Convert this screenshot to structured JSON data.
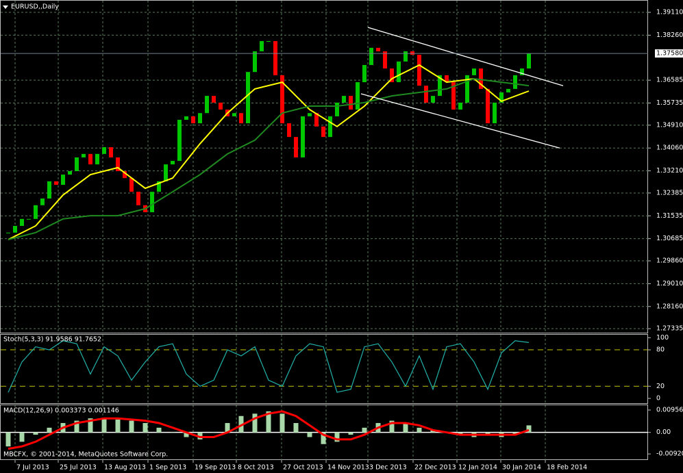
{
  "chart_data": [
    {
      "type": "candlestick",
      "title": "EURUSD,,Daily",
      "up_color": "#00c800",
      "down_color": "#ff0000",
      "closes": [
        1.3091,
        1.3116,
        1.3142,
        1.3142,
        1.3193,
        1.3218,
        1.3282,
        1.3269,
        1.3307,
        1.332,
        1.3371,
        1.3384,
        1.3345,
        1.3384,
        1.3409,
        1.3371,
        1.332,
        1.3294,
        1.3243,
        1.3193,
        1.3167,
        1.3243,
        1.3282,
        1.3345,
        1.3358,
        1.3511,
        1.3524,
        1.3498,
        1.3536,
        1.36,
        1.3575,
        1.3549,
        1.3524,
        1.3536,
        1.3498,
        1.3689,
        1.3766,
        1.3804,
        1.3804,
        1.3677,
        1.3498,
        1.3447,
        1.3371,
        1.3524,
        1.3536,
        1.3486,
        1.3447,
        1.3524,
        1.3575,
        1.36,
        1.3549,
        1.3651,
        1.3715,
        1.3779,
        1.3766,
        1.3702,
        1.3651,
        1.3728,
        1.3766,
        1.3753,
        1.3638,
        1.3575,
        1.36,
        1.3677,
        1.3651,
        1.3549,
        1.3575,
        1.3677,
        1.3702,
        1.3626,
        1.3498,
        1.3575,
        1.3613,
        1.3626,
        1.3677,
        1.3702,
        1.3758
      ],
      "moving_averages": [
        {
          "color": "#ffff00",
          "x": [
            0,
            4,
            8,
            12,
            16,
            20,
            24,
            28,
            32,
            36,
            40,
            44,
            48,
            52,
            56,
            60,
            64,
            68,
            72,
            76
          ],
          "values": [
            1.3065,
            1.3116,
            1.3231,
            1.3307,
            1.3333,
            1.3256,
            1.3294,
            1.3422,
            1.3536,
            1.3626,
            1.3651,
            1.3549,
            1.3486,
            1.3562,
            1.3664,
            1.3715,
            1.3651,
            1.3664,
            1.358,
            1.3618
          ]
        },
        {
          "color": "#1f8a1f",
          "x": [
            0,
            4,
            8,
            12,
            16,
            20,
            24,
            28,
            32,
            36,
            40,
            44,
            48,
            52,
            56,
            60,
            64,
            68,
            72,
            76
          ],
          "values": [
            1.3065,
            1.3091,
            1.3142,
            1.3154,
            1.3154,
            1.318,
            1.3243,
            1.3307,
            1.3384,
            1.3435,
            1.3536,
            1.3562,
            1.3562,
            1.3575,
            1.36,
            1.3613,
            1.3626,
            1.3664,
            1.3651,
            1.3638
          ]
        }
      ],
      "channel": {
        "color": "#ffffff",
        "lines": [
          {
            "x": [
              52.5,
              81
            ],
            "values": [
              1.3855,
              1.3638
            ]
          },
          {
            "x": [
              51.5,
              80.5
            ],
            "values": [
              1.3608,
              1.3406
            ]
          }
        ]
      },
      "last_price": {
        "value": 1.3758,
        "label": "1.37580"
      },
      "xlim": [
        -1.2,
        93.4
      ],
      "xticks": [
        {
          "value": 1.0,
          "label": "7 Jul 2013"
        },
        {
          "value": 7.3,
          "label": "25 Jul 2013"
        },
        {
          "value": 13.8,
          "label": "13 Aug 2013"
        },
        {
          "value": 20.4,
          "label": "1 Sep 2013"
        },
        {
          "value": 27.0,
          "label": "19 Sep 2013"
        },
        {
          "value": 33.3,
          "label": "8 Oct 2013"
        },
        {
          "value": 39.9,
          "label": "27 Oct 2013"
        },
        {
          "value": 46.4,
          "label": "14 Nov 2013"
        },
        {
          "value": 52.5,
          "label": "3 Dec 2013"
        },
        {
          "value": 59.1,
          "label": "22 Dec 2013"
        },
        {
          "value": 65.5,
          "label": "12 Jan 2014"
        },
        {
          "value": 71.9,
          "label": "30 Jan 2014"
        },
        {
          "value": 78.4,
          "label": "18 Feb 2014"
        }
      ],
      "ylim": [
        1.2716,
        1.3957
      ],
      "yticks": [
        {
          "value": 1.3911,
          "label": "1.39110"
        },
        {
          "value": 1.3826,
          "label": "1.38260"
        },
        1.36585,
        1.35735,
        {
          "value": 1.3491,
          "label": "1.34910"
        },
        {
          "value": 1.3406,
          "label": "1.34060"
        },
        {
          "value": 1.3321,
          "label": "1.33210"
        },
        1.32385,
        1.31535,
        1.30685,
        {
          "value": 1.2986,
          "label": "1.29860"
        },
        {
          "value": 1.2901,
          "label": "1.29010"
        },
        {
          "value": 1.2816,
          "label": "1.28160"
        },
        1.27335
      ],
      "grid": true
    },
    {
      "type": "line",
      "title": "Stoch(5,3,3) 91.9586 91.7652",
      "series": [
        {
          "color": "#20b2aa",
          "x": [
            0,
            2,
            4,
            6,
            8,
            10,
            12,
            14,
            16,
            18,
            20,
            22,
            24,
            26,
            28,
            30,
            32,
            34,
            36,
            38,
            40,
            42,
            44,
            46,
            48,
            50,
            52,
            54,
            56,
            58,
            60,
            62,
            64,
            66,
            68,
            70,
            72,
            74,
            76
          ],
          "values": [
            10,
            60,
            85,
            80,
            95,
            90,
            40,
            85,
            70,
            30,
            60,
            85,
            90,
            40,
            20,
            30,
            80,
            70,
            85,
            30,
            20,
            70,
            90,
            85,
            10,
            15,
            85,
            90,
            60,
            20,
            70,
            15,
            85,
            90,
            60,
            15,
            75,
            95,
            92
          ]
        }
      ],
      "levels": [
        80,
        20
      ],
      "level_color": "#c8c800",
      "ylim": [
        -9,
        106
      ],
      "yticks": [
        100,
        80,
        20,
        0
      ],
      "grid": false
    },
    {
      "type": "macd",
      "title": "MACD(12,26,9) 0.003373 0.001146",
      "footer": "MBCFX, © 2001-2014, MetaQuotes Software Corp.",
      "histogram": {
        "color": "#a8d8a8",
        "x": [
          0,
          2,
          4,
          6,
          8,
          10,
          12,
          14,
          16,
          18,
          20,
          22,
          24,
          26,
          28,
          30,
          32,
          34,
          36,
          38,
          40,
          42,
          44,
          46,
          48,
          50,
          52,
          54,
          56,
          58,
          60,
          62,
          64,
          66,
          68,
          70,
          72,
          74,
          76
        ],
        "values": [
          -0.006,
          -0.004,
          -0.001,
          0.002,
          0.004,
          0.005,
          0.006,
          0.006,
          0.0055,
          0.005,
          0.004,
          0.002,
          0,
          -0.002,
          -0.003,
          0,
          0.004,
          0.007,
          0.008,
          0.009,
          0.008,
          0.004,
          -0.002,
          -0.005,
          -0.004,
          -0.001,
          0.002,
          0.004,
          0.005,
          0.004,
          0.002,
          0.001,
          0,
          -0.001,
          -0.002,
          -0.001,
          -0.002,
          -0.001,
          0.003
        ]
      },
      "signal": {
        "color": "#ff0000",
        "x": [
          0,
          2,
          4,
          6,
          8,
          10,
          12,
          14,
          16,
          18,
          20,
          22,
          24,
          26,
          28,
          30,
          32,
          34,
          36,
          38,
          40,
          42,
          44,
          46,
          48,
          50,
          52,
          54,
          56,
          58,
          60,
          62,
          64,
          66,
          68,
          70,
          72,
          74,
          76
        ],
        "values": [
          -0.007,
          -0.006,
          -0.004,
          -0.001,
          0.002,
          0.004,
          0.005,
          0.006,
          0.006,
          0.0055,
          0.005,
          0.004,
          0.002,
          0,
          -0.002,
          -0.002,
          0,
          0.003,
          0.006,
          0.008,
          0.009,
          0.007,
          0.003,
          -0.001,
          -0.003,
          -0.003,
          -0.001,
          0.002,
          0.004,
          0.004,
          0.003,
          0.001,
          0,
          -0.001,
          -0.001,
          -0.001,
          -0.001,
          -0.001,
          0.001
        ]
      },
      "ylim": [
        -0.0118,
        0.0119
      ],
      "yticks": [
        0.009563,
        {
          "value": 0,
          "label": "0.00"
        },
        -0.009207
      ],
      "grid": false
    }
  ]
}
